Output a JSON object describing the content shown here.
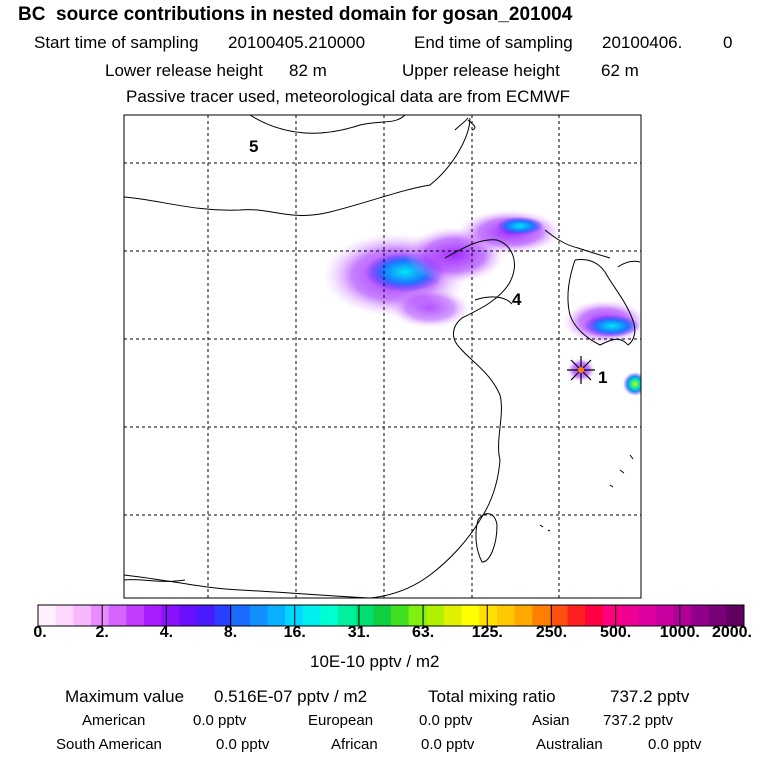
{
  "header": {
    "title": "BC  source contributions in nested domain for gosan_201004",
    "start_label": "Start time of sampling",
    "start_value": "20100405.210000",
    "end_label": "End time of sampling",
    "end_value": "20100406.",
    "end_extra": "0",
    "lower_label": "Lower release height",
    "lower_value": "82 m",
    "upper_label": "Upper release height",
    "upper_value": "62 m",
    "note": "Passive tracer used, meteorological data are from ECMWF"
  },
  "map": {
    "labels": {
      "site5": "5",
      "site4": "4",
      "site1": "1"
    }
  },
  "chart_data": {
    "type": "heatmap",
    "title": "BC  source contributions in nested domain for gosan_201004",
    "colorbar": {
      "tick_labels": [
        "0.",
        "2.",
        "4.",
        "8.",
        "16.",
        "31.",
        "63.",
        "125.",
        "250.",
        "500.",
        "1000.",
        "2000."
      ],
      "unit_label": "10E-10 pptv / m2",
      "colors": [
        "#fff0ff",
        "#ffd8ff",
        "#f7b8ff",
        "#e68cff",
        "#d466ff",
        "#c03cff",
        "#a81dff",
        "#8a12ff",
        "#6a10ff",
        "#4a1aff",
        "#2a40ff",
        "#1a6cff",
        "#1090ff",
        "#08b0ff",
        "#00d8ff",
        "#00f0f0",
        "#00ffd0",
        "#00f0a0",
        "#00e070",
        "#10d040",
        "#40e020",
        "#80f010",
        "#b0f000",
        "#e0f000",
        "#ffff00",
        "#ffe000",
        "#ffc800",
        "#ffa800",
        "#ff8000",
        "#ff5010",
        "#ff2020",
        "#ff0040",
        "#ff0080",
        "#f00090",
        "#e000a0",
        "#c800a0",
        "#b00098",
        "#900088",
        "#780078",
        "#600060"
      ]
    },
    "max_label": "Maximum value",
    "max_value": "0.516E-07 pptv / m2",
    "total_label": "Total mixing ratio",
    "total_value": "737.2 pptv",
    "contributions": [
      {
        "name": "American",
        "value": "0.0 pptv"
      },
      {
        "name": "European",
        "value": "0.0 pptv"
      },
      {
        "name": "Asian",
        "value": "737.2 pptv"
      },
      {
        "name": "South American",
        "value": "0.0 pptv"
      },
      {
        "name": "African",
        "value": "0.0 pptv"
      },
      {
        "name": "Australian",
        "value": "0.0 pptv"
      }
    ]
  }
}
